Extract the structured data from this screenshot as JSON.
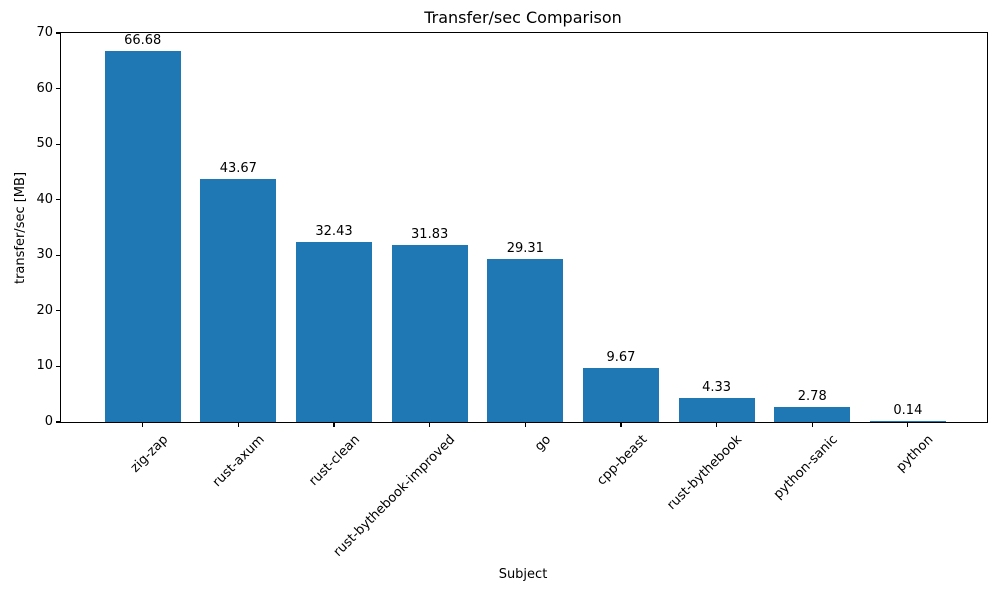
{
  "chart_data": {
    "type": "bar",
    "title": "Transfer/sec Comparison",
    "xlabel": "Subject",
    "ylabel": "transfer/sec [MB]",
    "categories": [
      "zig-zap",
      "rust-axum",
      "rust-clean",
      "rust-bythebook-improved",
      "go",
      "cpp-beast",
      "rust-bythebook",
      "python-sanic",
      "python"
    ],
    "values": [
      66.68,
      43.67,
      32.43,
      31.83,
      29.31,
      9.67,
      4.33,
      2.78,
      0.14
    ],
    "value_labels": [
      "66.68",
      "43.67",
      "32.43",
      "31.83",
      "29.31",
      "9.67",
      "4.33",
      "2.78",
      "0.14"
    ],
    "ylim": [
      0,
      70
    ],
    "yticks": [
      0,
      10,
      20,
      30,
      40,
      50,
      60,
      70
    ],
    "bar_color": "#1f77b4",
    "grid": false,
    "legend": "none",
    "x_tick_rotation_degrees": 45
  }
}
